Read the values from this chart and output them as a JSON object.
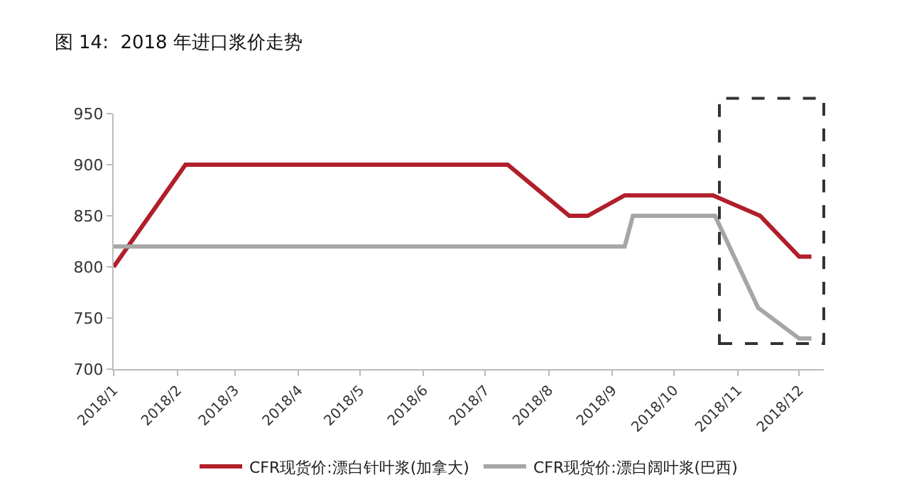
{
  "chart_data": {
    "type": "line",
    "title": "图 14:  2018 年进口浆价走势",
    "series": [
      {
        "name": "CFR现货价:漂白针叶浆(加拿大)",
        "color": "#b01f2a",
        "x": [
          "2018-01-01",
          "2018-02-05",
          "2018-07-12",
          "2018-08-11",
          "2018-08-20",
          "2018-09-07",
          "2018-10-20",
          "2018-11-12",
          "2018-12-01",
          "2018-12-07"
        ],
        "values": [
          800,
          900,
          900,
          850,
          850,
          870,
          870,
          850,
          810,
          810
        ]
      },
      {
        "name": "CFR现货价:漂白阔叶浆(巴西)",
        "color": "#a6a6a6",
        "x": [
          "2018-01-01",
          "2018-09-07",
          "2018-09-11",
          "2018-10-21",
          "2018-11-11",
          "2018-12-01",
          "2018-12-07"
        ],
        "values": [
          820,
          820,
          850,
          850,
          760,
          730,
          730
        ]
      }
    ],
    "xlim": [
      "2018-01-01",
      "2018-12-13"
    ],
    "xticks": [
      {
        "value": "2018-01",
        "label": "2018/1"
      },
      {
        "value": "2018-02",
        "label": "2018/2"
      },
      {
        "value": "2018-03",
        "label": "2018/3"
      },
      {
        "value": "2018-04",
        "label": "2018/4"
      },
      {
        "value": "2018-05",
        "label": "2018/5"
      },
      {
        "value": "2018-06",
        "label": "2018/6"
      },
      {
        "value": "2018-07",
        "label": "2018/7"
      },
      {
        "value": "2018-08",
        "label": "2018/8"
      },
      {
        "value": "2018-09",
        "label": "2018/9"
      },
      {
        "value": "2018-10",
        "label": "2018/10"
      },
      {
        "value": "2018-11",
        "label": "2018/11"
      },
      {
        "value": "2018-12",
        "label": "2018/12"
      }
    ],
    "ylim": [
      700,
      950
    ],
    "yticks": [
      700,
      750,
      800,
      850,
      900,
      950
    ],
    "grid": false,
    "legend": "bottom"
  }
}
